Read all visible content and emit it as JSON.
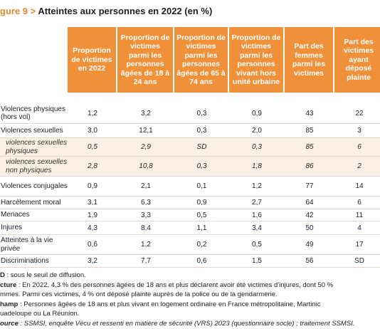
{
  "header": {
    "figure": "gure 9 >",
    "title": "Atteintes aux personnes en 2022 (en %)"
  },
  "table": {
    "headers": [
      "Proportion de victimes en 2022",
      "Proportion de victimes parmi les personnes âgées de 18 à 24 ans",
      "Proportion de victimes parmi les personnes âgées de 65 à 74 ans",
      "Proportion de victimes parmi les personnes vivant hors unité urbaine",
      "Part des femmes parmi les victimes",
      "Part des victimes ayant déposé plainte"
    ],
    "rows": [
      [
        "Violences physiques (hors vol)",
        "1,2",
        "3,2",
        "0,3",
        "0,9",
        "43",
        "22"
      ],
      [
        "Violences sexuelles",
        "3,0",
        "12,1",
        "0,3",
        "2,0",
        "85",
        "3"
      ],
      [
        "violences sexuelles physiques",
        "0,5",
        "2,9",
        "SD",
        "0,3",
        "85",
        "6"
      ],
      [
        "violences sexuelles non physiques",
        "2,8",
        "10,8",
        "0,3",
        "1,8",
        "86",
        "2"
      ],
      [
        "Violences conjugales",
        "0,9",
        "2,1",
        "0,1",
        "1,2",
        "77",
        "14"
      ],
      [
        "Harcèlement moral",
        "3,1",
        "6,3",
        "0,9",
        "2,7",
        "64",
        "6"
      ],
      [
        "Menaces",
        "1,9",
        "3,3",
        "0,5",
        "1,6",
        "42",
        "11"
      ],
      [
        "Injures",
        "4,3",
        "8,4",
        "1,1",
        "3,4",
        "50",
        "4"
      ],
      [
        "Atteintes à la vie privée",
        "0,6",
        "1,2",
        "0,2",
        "0,5",
        "49",
        "17"
      ],
      [
        "Discriminations",
        "3,2",
        "7,7",
        "0,6",
        "1,5",
        "56",
        "SD"
      ]
    ]
  },
  "notes": [
    {
      "label": "D",
      "text": " : sous le seuil de diffusion."
    },
    {
      "label": "cture",
      "text": " : En 2022, 4,3 % des personnes âgées de 18 ans et plus déclarent avoir été victimes d'injures, dont 50 %"
    },
    {
      "label": "",
      "text": "mmes. Parmi ces victimes, 4 % ont déposé plainte auprès de la police ou de la gendarmerie."
    },
    {
      "label": "hamp",
      "text": " : Personnes âgées de 18 ans et plus vivant en logement ordinaire en France métropolitaine, Martinic"
    },
    {
      "label": "",
      "text": "uadeloupe ou La Réunion."
    },
    {
      "label": "ource",
      "text": " : SSMSI, enquête Vécu et ressenti en matière de sécurité (VRS) 2023 (questionnaire socle) ; traitement SSMSI."
    }
  ]
}
